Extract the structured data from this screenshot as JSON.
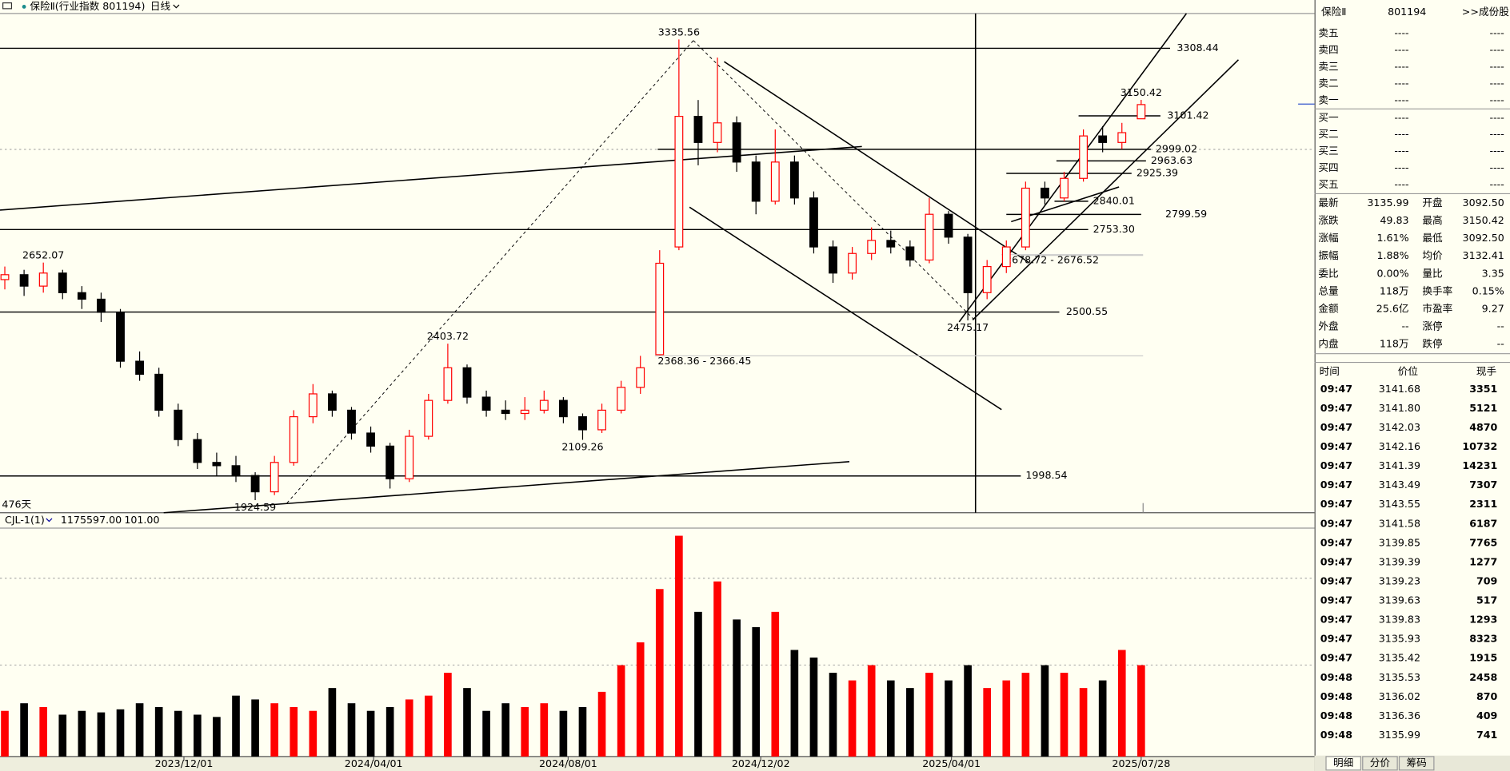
{
  "header": {
    "title": "保险Ⅱ(行业指数 801194)",
    "period": "日线",
    "days": "476天",
    "indicator": "CJL-1(1)",
    "indicator_values": [
      "1175597.00",
      "101.00"
    ]
  },
  "chart_data": {
    "type": "candlestick",
    "ohlc": [
      [
        2600,
        2640,
        2570,
        2615
      ],
      [
        2615,
        2630,
        2550,
        2580
      ],
      [
        2580,
        2652.07,
        2560,
        2620
      ],
      [
        2620,
        2630,
        2540,
        2560
      ],
      [
        2560,
        2580,
        2510,
        2540
      ],
      [
        2540,
        2560,
        2470,
        2500
      ],
      [
        2500,
        2510,
        2330,
        2350
      ],
      [
        2350,
        2380,
        2290,
        2310
      ],
      [
        2310,
        2330,
        2180,
        2200
      ],
      [
        2200,
        2220,
        2090,
        2110
      ],
      [
        2110,
        2130,
        2020,
        2040
      ],
      [
        2040,
        2070,
        2000,
        2030
      ],
      [
        2030,
        2060,
        1980,
        2000
      ],
      [
        2000,
        2010,
        1924.59,
        1950
      ],
      [
        1950,
        2060,
        1940,
        2040
      ],
      [
        2040,
        2200,
        2030,
        2180
      ],
      [
        2180,
        2280,
        2160,
        2250
      ],
      [
        2250,
        2260,
        2180,
        2200
      ],
      [
        2200,
        2210,
        2110,
        2130
      ],
      [
        2130,
        2150,
        2070,
        2090
      ],
      [
        2090,
        2100,
        1960,
        1990
      ],
      [
        1990,
        2140,
        1980,
        2120
      ],
      [
        2120,
        2250,
        2110,
        2230
      ],
      [
        2230,
        2403.72,
        2220,
        2330
      ],
      [
        2330,
        2340,
        2220,
        2240
      ],
      [
        2240,
        2260,
        2180,
        2200
      ],
      [
        2200,
        2230,
        2170,
        2190
      ],
      [
        2190,
        2240,
        2170,
        2200
      ],
      [
        2200,
        2260,
        2190,
        2230
      ],
      [
        2230,
        2240,
        2160,
        2180
      ],
      [
        2180,
        2190,
        2109.26,
        2140
      ],
      [
        2140,
        2220,
        2130,
        2200
      ],
      [
        2200,
        2290,
        2190,
        2270
      ],
      [
        2270,
        2366.45,
        2250,
        2330
      ],
      [
        2370,
        2690,
        2368.36,
        2650
      ],
      [
        2700,
        3335.56,
        2690,
        3100
      ],
      [
        3100,
        3150,
        2950,
        3020
      ],
      [
        3020,
        3280,
        2990,
        3080
      ],
      [
        3080,
        3100,
        2930,
        2960
      ],
      [
        2960,
        2980,
        2800,
        2840
      ],
      [
        2840,
        3060,
        2830,
        2960
      ],
      [
        2960,
        2980,
        2830,
        2850
      ],
      [
        2850,
        2870,
        2680,
        2700
      ],
      [
        2700,
        2720,
        2590,
        2620
      ],
      [
        2620,
        2700,
        2600,
        2680
      ],
      [
        2680,
        2760,
        2660,
        2720
      ],
      [
        2720,
        2750,
        2680,
        2700
      ],
      [
        2700,
        2720,
        2640,
        2660
      ],
      [
        2660,
        2850,
        2650,
        2800
      ],
      [
        2800,
        2810,
        2710,
        2730
      ],
      [
        2730,
        2740,
        2475.17,
        2560
      ],
      [
        2560,
        2660,
        2540,
        2640
      ],
      [
        2640,
        2720,
        2620,
        2700
      ],
      [
        2700,
        2900,
        2690,
        2880
      ],
      [
        2880,
        2900,
        2830,
        2850
      ],
      [
        2850,
        2930,
        2840,
        2910
      ],
      [
        2910,
        3060,
        2900,
        3040
      ],
      [
        3040,
        3070,
        2990,
        3020
      ],
      [
        3020,
        3080,
        3000,
        3050
      ],
      [
        3092.5,
        3150.42,
        3092.5,
        3135.99
      ]
    ],
    "volume": [
      600000,
      700000,
      650000,
      550000,
      600000,
      580000,
      620000,
      700000,
      650000,
      600000,
      550000,
      520000,
      800000,
      750000,
      700000,
      650000,
      600000,
      900000,
      700000,
      600000,
      650000,
      750000,
      800000,
      1100000,
      900000,
      600000,
      700000,
      650000,
      700000,
      600000,
      650000,
      850000,
      1200000,
      1500000,
      2200000,
      2900000,
      1900000,
      2300000,
      1800000,
      1700000,
      1900000,
      1400000,
      1300000,
      1100000,
      1000000,
      1200000,
      1000000,
      900000,
      1100000,
      1000000,
      1200000,
      900000,
      1000000,
      1100000,
      1200000,
      1100000,
      900000,
      1000000,
      1400000,
      1200000
    ],
    "xlim": [
      0,
      59
    ],
    "xticks": [
      {
        "value": 9.3,
        "label": "2023/12/01"
      },
      {
        "value": 19.15,
        "label": "2024/04/01"
      },
      {
        "value": 29.25,
        "label": "2024/08/01"
      },
      {
        "value": 39.25,
        "label": "2024/12/02"
      },
      {
        "value": 49.15,
        "label": "2025/04/01"
      },
      {
        "value": 59,
        "label": "2025/07/28"
      }
    ],
    "ylim": [
      1886,
      3415
    ],
    "volume_ylim": [
      0,
      3000000
    ],
    "up_color": "#ff0000",
    "down_color": "#000000",
    "levels": [
      3308.44,
      3101.42,
      2999.02,
      2963.63,
      2925.39,
      2840.01,
      2799.59,
      {
        "value": 2753.3,
        "label": "2753.30"
      },
      2500.55,
      1998.54
    ],
    "extremes": [
      3335.56,
      2652.07,
      2403.72,
      3150.42,
      1924.59,
      2109.26,
      2475.17
    ],
    "gap_labels": [
      {
        "value": 2366.45,
        "label": "2368.36 - 2366.45"
      },
      {
        "value": 2676.52,
        "label": "2678.72 - 2676.52"
      }
    ]
  },
  "quote": {
    "name": "保险Ⅱ",
    "code": "801194",
    "link": ">>成份股",
    "book": [
      [
        "卖五",
        "----",
        "----"
      ],
      [
        "卖四",
        "----",
        "----"
      ],
      [
        "卖三",
        "----",
        "----"
      ],
      [
        "卖二",
        "----",
        "----"
      ],
      [
        "卖一",
        "----",
        "----"
      ],
      [
        "买一",
        "----",
        "----"
      ],
      [
        "买二",
        "----",
        "----"
      ],
      [
        "买三",
        "----",
        "----"
      ],
      [
        "买四",
        "----",
        "----"
      ],
      [
        "买五",
        "----",
        "----"
      ]
    ],
    "stats": [
      [
        {
          "label": "最新",
          "value": "3135.99",
          "color": "#e00000"
        },
        {
          "label": "开盘",
          "value": "3092.50",
          "color": "#e00000"
        }
      ],
      [
        {
          "label": "涨跌",
          "value": "49.83",
          "color": "#e00000"
        },
        {
          "label": "最高",
          "value": "3150.42",
          "color": "#e00000"
        }
      ],
      [
        {
          "label": "涨幅",
          "value": "1.61%",
          "color": "#e00000"
        },
        {
          "label": "最低",
          "value": "3092.50",
          "color": "#e00000"
        }
      ],
      [
        {
          "label": "振幅",
          "value": "1.88%",
          "color": "#e00000"
        },
        {
          "label": "均价",
          "value": "3132.41",
          "color": "#e00000"
        }
      ],
      [
        {
          "label": "委比",
          "value": "0.00%",
          "color": "#e00000"
        },
        {
          "label": "量比",
          "value": "3.35",
          "color": "#0000c0"
        }
      ],
      [
        {
          "label": "总量",
          "value": "118万",
          "color": "#e00000"
        },
        {
          "label": "换手率",
          "value": "0.15%",
          "color": "#0000c0"
        }
      ],
      [
        {
          "label": "金额",
          "value": "25.6亿",
          "color": "#e00000"
        },
        {
          "label": "市盈率",
          "value": "9.27",
          "color": "#0000c0"
        }
      ],
      [
        {
          "label": "外盘",
          "value": "--",
          "color": "#0000c0"
        },
        {
          "label": "涨停",
          "value": "--",
          "color": "#888888"
        }
      ],
      [
        {
          "label": "内盘",
          "value": "118万",
          "color": "#e00000"
        },
        {
          "label": "跌停",
          "value": "--",
          "color": "#888888"
        }
      ]
    ],
    "trades_header": [
      "时间",
      "价位",
      "现手"
    ],
    "trades": [
      [
        "09:47",
        "3141.68",
        "3351"
      ],
      [
        "09:47",
        "3141.80",
        "5121"
      ],
      [
        "09:47",
        "3142.03",
        "4870"
      ],
      [
        "09:47",
        "3142.16",
        "10732"
      ],
      [
        "09:47",
        "3141.39",
        "14231"
      ],
      [
        "09:47",
        "3143.49",
        "7307"
      ],
      [
        "09:47",
        "3143.55",
        "2311"
      ],
      [
        "09:47",
        "3141.58",
        "6187"
      ],
      [
        "09:47",
        "3139.85",
        "7765"
      ],
      [
        "09:47",
        "3139.39",
        "1277"
      ],
      [
        "09:47",
        "3139.23",
        "709"
      ],
      [
        "09:47",
        "3139.63",
        "517"
      ],
      [
        "09:47",
        "3139.83",
        "1293"
      ],
      [
        "09:47",
        "3135.93",
        "8323"
      ],
      [
        "09:47",
        "3135.42",
        "1915"
      ],
      [
        "09:48",
        "3135.53",
        "2458"
      ],
      [
        "09:48",
        "3136.02",
        "870"
      ],
      [
        "09:48",
        "3136.36",
        "409"
      ],
      [
        "09:48",
        "3135.99",
        "741"
      ]
    ],
    "tabs": [
      "明细",
      "分价",
      "筹码"
    ]
  }
}
